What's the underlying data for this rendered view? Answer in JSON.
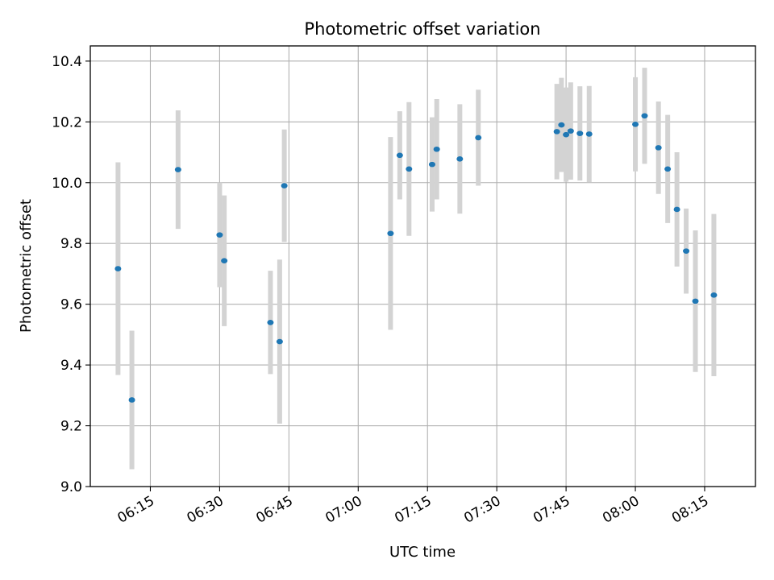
{
  "chart_data": {
    "type": "scatter",
    "title": "Photometric offset variation",
    "xlabel": "UTC time",
    "ylabel": "Photometric offset",
    "ylim": [
      9.0,
      10.45
    ],
    "xlim": [
      "06:02",
      "08:26"
    ],
    "grid": true,
    "x_ticks": [
      "06:15",
      "06:30",
      "06:45",
      "07:00",
      "07:15",
      "07:30",
      "07:45",
      "08:00",
      "08:15"
    ],
    "y_ticks": [
      "9.0",
      "9.2",
      "9.4",
      "9.6",
      "9.8",
      "10.0",
      "10.2",
      "10.4"
    ],
    "marker_color": "#1f77b4",
    "errorbar_color": "#d3d3d3",
    "points": [
      {
        "x": "06:08",
        "y": 9.717,
        "err": 0.35
      },
      {
        "x": "06:11",
        "y": 9.285,
        "err": 0.228
      },
      {
        "x": "06:21",
        "y": 10.043,
        "err": 0.195
      },
      {
        "x": "06:30",
        "y": 9.828,
        "err": 0.172
      },
      {
        "x": "06:31",
        "y": 9.743,
        "err": 0.215
      },
      {
        "x": "06:41",
        "y": 9.54,
        "err": 0.17
      },
      {
        "x": "06:43",
        "y": 9.477,
        "err": 0.27
      },
      {
        "x": "06:44",
        "y": 9.99,
        "err": 0.185
      },
      {
        "x": "07:07",
        "y": 9.833,
        "err": 0.317
      },
      {
        "x": "07:09",
        "y": 10.09,
        "err": 0.145
      },
      {
        "x": "07:11",
        "y": 10.045,
        "err": 0.22
      },
      {
        "x": "07:16",
        "y": 10.06,
        "err": 0.155
      },
      {
        "x": "07:17",
        "y": 10.11,
        "err": 0.165
      },
      {
        "x": "07:22",
        "y": 10.078,
        "err": 0.18
      },
      {
        "x": "07:26",
        "y": 10.148,
        "err": 0.158
      },
      {
        "x": "07:43",
        "y": 10.168,
        "err": 0.157
      },
      {
        "x": "07:44",
        "y": 10.19,
        "err": 0.155
      },
      {
        "x": "07:45",
        "y": 10.158,
        "err": 0.155
      },
      {
        "x": "07:46",
        "y": 10.17,
        "err": 0.16
      },
      {
        "x": "07:48",
        "y": 10.162,
        "err": 0.155
      },
      {
        "x": "07:50",
        "y": 10.16,
        "err": 0.158
      },
      {
        "x": "08:00",
        "y": 10.192,
        "err": 0.155
      },
      {
        "x": "08:02",
        "y": 10.22,
        "err": 0.158
      },
      {
        "x": "08:05",
        "y": 10.115,
        "err": 0.152
      },
      {
        "x": "08:07",
        "y": 10.045,
        "err": 0.178
      },
      {
        "x": "08:09",
        "y": 9.912,
        "err": 0.188
      },
      {
        "x": "08:11",
        "y": 9.775,
        "err": 0.14
      },
      {
        "x": "08:13",
        "y": 9.61,
        "err": 0.233
      },
      {
        "x": "08:17",
        "y": 9.63,
        "err": 0.267
      }
    ]
  }
}
